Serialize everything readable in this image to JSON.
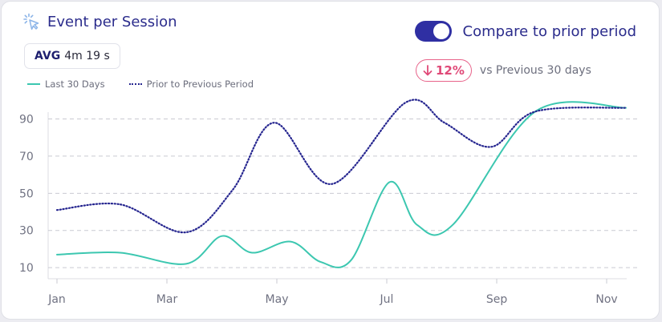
{
  "header": {
    "title": "Event per Session",
    "icon": "cursor-click-icon",
    "avg_label": "AVG",
    "avg_value": "4m 19 s"
  },
  "legend": {
    "current": "Last 30 Days",
    "prior": "Prior to Previous Period"
  },
  "compare": {
    "toggle_on": true,
    "label": "Compare to prior period",
    "delta": "12%",
    "delta_direction": "down",
    "delta_text": "vs Previous 30 days"
  },
  "colors": {
    "current": "#3cc7b0",
    "prior": "#25258f",
    "accent": "#2f2fa3",
    "negative": "#e04a78"
  },
  "chart_data": {
    "type": "line",
    "title": "",
    "xlabel": "",
    "ylabel": "",
    "x_ticks": [
      "Jan",
      "Mar",
      "May",
      "Jul",
      "Sep",
      "Nov"
    ],
    "y_ticks": [
      10,
      30,
      50,
      70,
      90
    ],
    "xlim": [
      0,
      10.35
    ],
    "ylim": [
      4,
      98
    ],
    "grid": "horizontal-dashed",
    "series": [
      {
        "name": "Last 30 Days",
        "style": "solid",
        "x": [
          0,
          1.15,
          2.35,
          3.0,
          3.55,
          4.25,
          4.8,
          5.35,
          6.05,
          6.55,
          7.2,
          8.7,
          10.35
        ],
        "values": [
          17,
          18,
          12,
          27,
          18,
          24,
          13,
          14,
          56,
          33,
          33,
          94,
          96
        ]
      },
      {
        "name": "Prior to Previous Period",
        "style": "dotted",
        "x": [
          0,
          1.15,
          2.35,
          3.2,
          3.95,
          5.0,
          6.35,
          7.05,
          7.9,
          8.7,
          10.35
        ],
        "values": [
          41,
          44,
          29,
          52,
          88,
          55,
          99,
          88,
          75,
          94,
          96
        ]
      }
    ]
  }
}
